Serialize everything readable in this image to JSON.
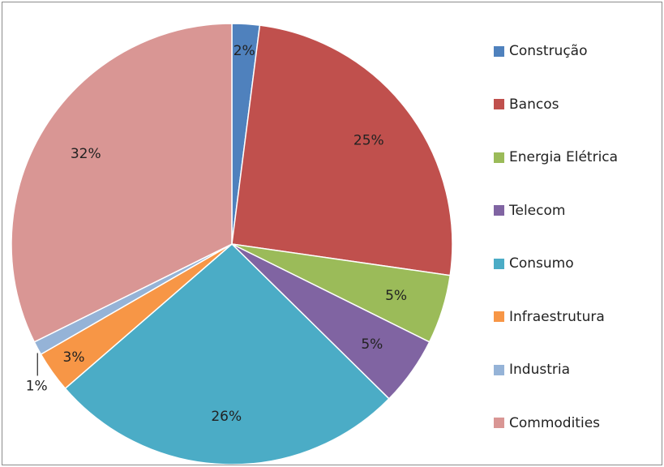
{
  "chart_data": {
    "type": "pie",
    "title": "",
    "legend_position": "right",
    "slices": [
      {
        "label": "Construção",
        "value": 2,
        "value_label": "2%",
        "color": "#4f81bd"
      },
      {
        "label": "Bancos",
        "value": 25,
        "value_label": "25%",
        "color": "#c0504d"
      },
      {
        "label": "Energia Elétrica",
        "value": 5,
        "value_label": "5%",
        "color": "#9bbb59"
      },
      {
        "label": "Telecom",
        "value": 5,
        "value_label": "5%",
        "color": "#8064a2"
      },
      {
        "label": "Consumo",
        "value": 26,
        "value_label": "26%",
        "color": "#4bacc6"
      },
      {
        "label": "Infraestrutura",
        "value": 3,
        "value_label": "3%",
        "color": "#f79646"
      },
      {
        "label": "Industria",
        "value": 1,
        "value_label": "1%",
        "color": "#95b3d7"
      },
      {
        "label": "Commodities",
        "value": 32,
        "value_label": "32%",
        "color": "#d99694"
      }
    ]
  }
}
